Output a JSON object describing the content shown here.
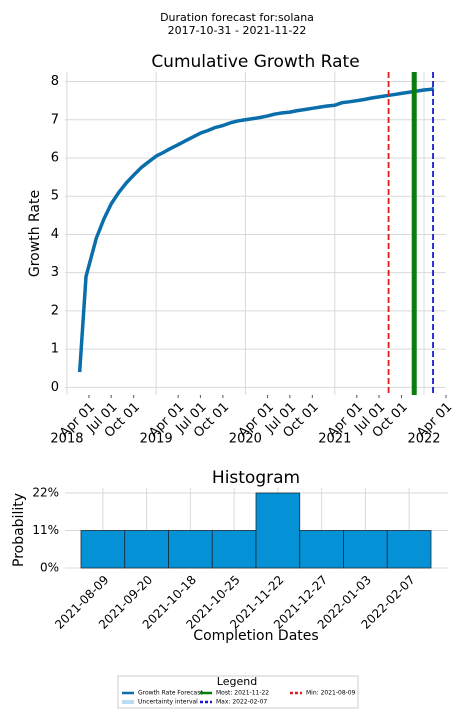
{
  "header": {
    "title": "Duration forecast for:solana",
    "subtitle": "2017-10-31 - 2021-11-22"
  },
  "chart_data": [
    {
      "type": "line",
      "title": "Cumulative Growth Rate",
      "y_label": "Growth Rate",
      "y_label_color": "#1a1acc",
      "x": [
        "2018-02-22",
        "2018-03-20",
        "2018-05-01",
        "2018-06-01",
        "2018-07-01",
        "2018-08-01",
        "2018-09-01",
        "2018-10-01",
        "2018-11-01",
        "2018-12-01",
        "2019-01-01",
        "2019-02-01",
        "2019-03-01",
        "2019-04-01",
        "2019-05-01",
        "2019-06-01",
        "2019-07-01",
        "2019-08-01",
        "2019-09-01",
        "2019-10-01",
        "2019-11-01",
        "2019-12-01",
        "2020-01-01",
        "2020-02-01",
        "2020-03-01",
        "2020-04-01",
        "2020-05-01",
        "2020-06-01",
        "2020-07-01",
        "2020-08-01",
        "2020-09-01",
        "2020-10-01",
        "2020-11-01",
        "2020-12-01",
        "2021-01-01",
        "2021-02-01",
        "2021-03-01",
        "2021-04-01",
        "2021-05-01",
        "2021-06-01",
        "2021-07-01",
        "2021-08-01",
        "2021-09-01",
        "2021-10-01",
        "2021-11-01",
        "2021-12-01",
        "2022-01-01",
        "2022-02-01",
        "2022-02-10"
      ],
      "series": [
        {
          "name": "Growth Rate Forecast",
          "color": "#0a6eaa",
          "values": [
            0.4,
            2.9,
            3.9,
            4.4,
            4.8,
            5.1,
            5.35,
            5.55,
            5.75,
            5.9,
            6.05,
            6.15,
            6.25,
            6.35,
            6.45,
            6.55,
            6.65,
            6.72,
            6.8,
            6.85,
            6.92,
            6.97,
            7.0,
            7.03,
            7.06,
            7.1,
            7.15,
            7.18,
            7.2,
            7.24,
            7.27,
            7.3,
            7.33,
            7.36,
            7.38,
            7.45,
            7.47,
            7.5,
            7.53,
            7.57,
            7.6,
            7.63,
            7.66,
            7.69,
            7.72,
            7.75,
            7.78,
            7.8,
            7.82
          ]
        }
      ],
      "xlim": [
        "2017-12-24",
        "2022-04-01"
      ],
      "xticks": [
        {
          "value": "2018-01-01",
          "label": "2018"
        },
        {
          "value": "2018-04-01",
          "label": "Apr 01"
        },
        {
          "value": "2018-07-01",
          "label": "Jul 01"
        },
        {
          "value": "2018-10-01",
          "label": "Oct 01"
        },
        {
          "value": "2019-01-01",
          "label": "2019"
        },
        {
          "value": "2019-04-01",
          "label": "Apr 01"
        },
        {
          "value": "2019-07-01",
          "label": "Jul 01"
        },
        {
          "value": "2019-10-01",
          "label": "Oct 01"
        },
        {
          "value": "2020-01-01",
          "label": "2020"
        },
        {
          "value": "2020-04-01",
          "label": "Apr 01"
        },
        {
          "value": "2020-07-01",
          "label": "Jul 01"
        },
        {
          "value": "2020-10-01",
          "label": "Oct 01"
        },
        {
          "value": "2021-01-01",
          "label": "2021"
        },
        {
          "value": "2021-04-01",
          "label": "Apr 01"
        },
        {
          "value": "2021-07-01",
          "label": "Jul 01"
        },
        {
          "value": "2021-10-01",
          "label": "Oct 01"
        },
        {
          "value": "2022-01-01",
          "label": "2022"
        },
        {
          "value": "2022-04-01",
          "label": "Apr 01"
        }
      ],
      "ylim": [
        -0.2,
        8.25
      ],
      "yticks": [
        0,
        1,
        2,
        3,
        4,
        5,
        6,
        7,
        8
      ],
      "grid": true,
      "vlines": [
        {
          "x": "2021-08-09",
          "color": "#e41a1c",
          "style": "dashed"
        },
        {
          "x": "2021-11-22",
          "color": "#0a7d0a",
          "style": "solid"
        },
        {
          "x": "2022-02-07",
          "color": "#1a1acc",
          "style": "dashed"
        }
      ]
    },
    {
      "type": "histogram",
      "title": "Histogram",
      "x_label": "Completion Dates",
      "y_label": "Probability",
      "categories": [
        "2021-08-09",
        "2021-09-20",
        "2021-10-18",
        "2021-10-25",
        "2021-11-22",
        "2021-12-27",
        "2022-01-03",
        "2022-02-07"
      ],
      "values": [
        11,
        11,
        11,
        11,
        22,
        11,
        11,
        11
      ],
      "color": "#0591d6",
      "ylim": [
        0,
        22
      ],
      "yticks": [
        {
          "value": 0,
          "label": "0%"
        },
        {
          "value": 11,
          "label": "11%"
        },
        {
          "value": 22,
          "label": "22%"
        }
      ],
      "grid": true
    }
  ],
  "legend": {
    "title": "Legend",
    "items": [
      {
        "label": "Growth Rate Forecast",
        "color": "#0a6eaa",
        "style": "solid"
      },
      {
        "label": "Uncertainty interval",
        "color": "#b9dcf2",
        "style": "patch"
      },
      {
        "label": "Most: 2021-11-22",
        "color": "#0a7d0a",
        "style": "solid"
      },
      {
        "label": "Max: 2022-02-07",
        "color": "#1a1acc",
        "style": "dashed"
      },
      {
        "label": "Min: 2021-08-09",
        "color": "#e41a1c",
        "style": "dashed"
      }
    ]
  }
}
